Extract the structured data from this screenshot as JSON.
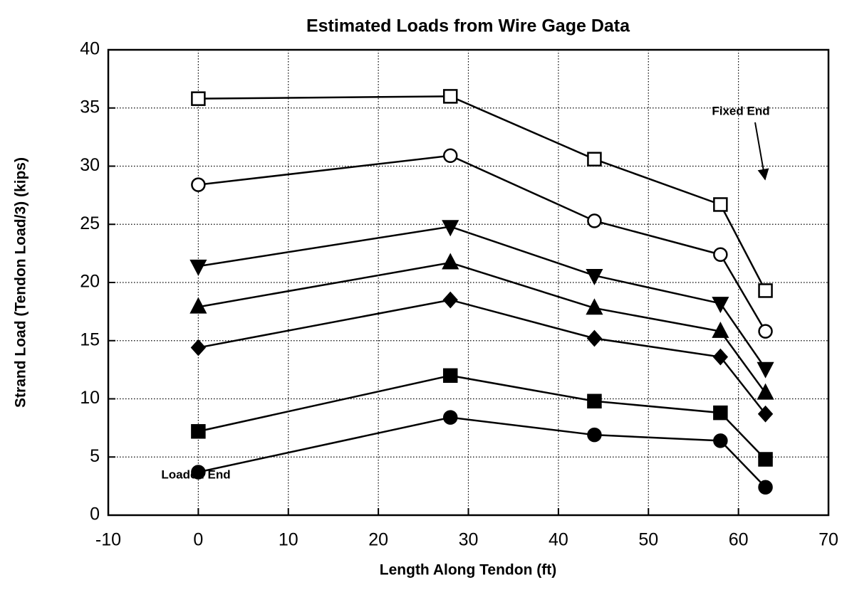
{
  "chart_data": {
    "type": "line",
    "title": "Estimated Loads from Wire Gage Data",
    "x_label": "Length Along Tendon (ft)",
    "y_label": "Strand Load (Tendon Load/3) (kips)",
    "annotations": [
      "Fixed End",
      "Loaded End"
    ],
    "x": [
      0,
      28,
      44,
      58,
      63
    ],
    "series": [
      {
        "marker": "square-open",
        "color": "#000000",
        "values": [
          35.8,
          36.0,
          30.6,
          26.7,
          19.3
        ]
      },
      {
        "marker": "circle-open",
        "color": "#000000",
        "values": [
          28.4,
          30.9,
          25.3,
          22.4,
          15.8
        ]
      },
      {
        "marker": "triangle-down",
        "color": "#000000",
        "values": [
          21.4,
          24.8,
          20.6,
          18.2,
          12.6
        ]
      },
      {
        "marker": "triangle-up",
        "color": "#000000",
        "values": [
          17.9,
          21.7,
          17.8,
          15.8,
          10.5
        ]
      },
      {
        "marker": "diamond",
        "color": "#000000",
        "values": [
          14.4,
          18.5,
          15.2,
          13.6,
          8.7
        ]
      },
      {
        "marker": "square",
        "color": "#000000",
        "values": [
          7.2,
          12.0,
          9.8,
          8.8,
          4.8
        ]
      },
      {
        "marker": "circle",
        "color": "#000000",
        "values": [
          3.7,
          8.4,
          6.9,
          6.4,
          2.4
        ]
      }
    ],
    "xlim": [
      -10,
      70
    ],
    "xticks": [
      -10,
      0,
      10,
      20,
      30,
      40,
      50,
      60,
      70
    ],
    "ylim": [
      0,
      40
    ],
    "yticks": [
      0,
      5,
      10,
      15,
      20,
      25,
      30,
      35,
      40
    ],
    "grid": true
  }
}
